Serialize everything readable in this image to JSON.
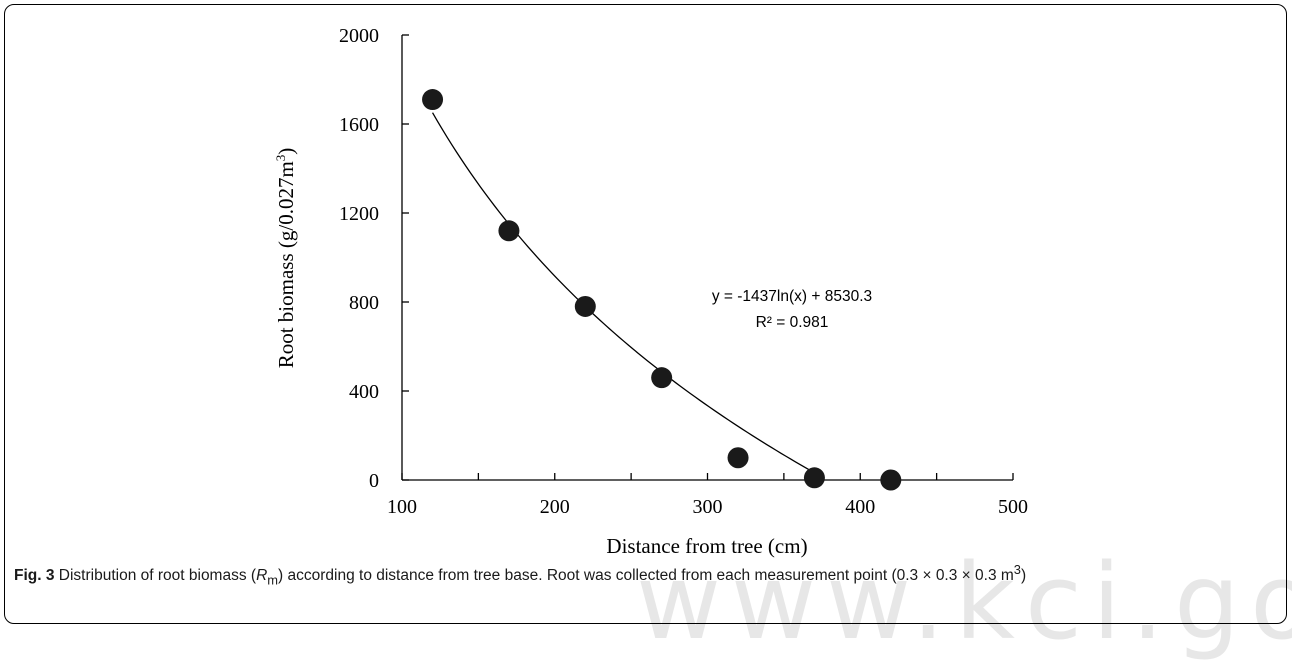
{
  "chart_data": {
    "type": "scatter",
    "x": [
      120,
      170,
      220,
      270,
      320,
      370,
      420
    ],
    "y": [
      1710,
      1120,
      780,
      460,
      100,
      10,
      0
    ],
    "xlabel": "Distance from tree (cm)",
    "ylabel_main": "Root biomass  (g/0.027m",
    "ylabel_sup": "3",
    "ylabel_close": ")",
    "xlim": [
      100,
      500
    ],
    "ylim": [
      0,
      2000
    ],
    "xticks": [
      100,
      200,
      300,
      400,
      500
    ],
    "yticks": [
      0,
      400,
      800,
      1200,
      1600,
      2000
    ],
    "grid": false,
    "trendline": {
      "type": "logarithmic",
      "a": -1437,
      "b": 8530.3,
      "x_from": 120,
      "x_to": 370,
      "equation": "y = -1437ln(x) + 8530.3",
      "r_squared": "R² = 0.981"
    },
    "marker_color": "#1a1a1a",
    "line_color": "#000000"
  },
  "caption": {
    "fig_label": "Fig. 3",
    "text_1": " Distribution of root biomass (",
    "symbol": "R",
    "symbol_sub": "m",
    "text_2": ") according to distance from tree base. Root was collected from each measurement point (0.3 × 0.3 × 0.3 m",
    "unit_sup": "3",
    "text_3": ")"
  },
  "watermark": "www.kci.go.kr"
}
